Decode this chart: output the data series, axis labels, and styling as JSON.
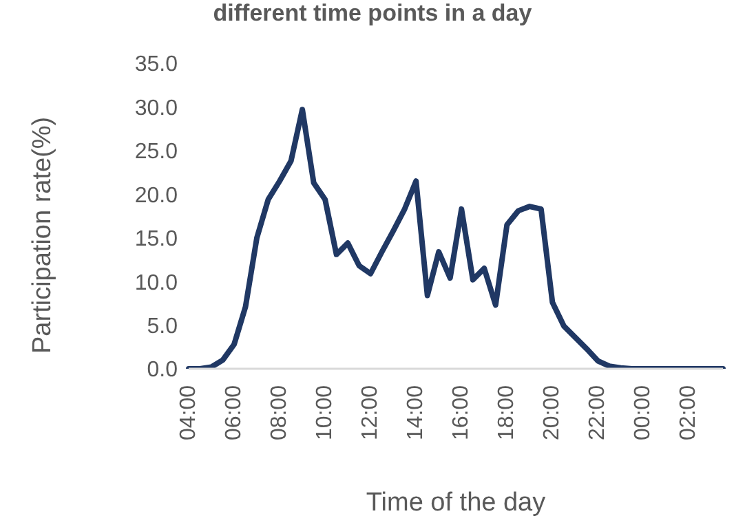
{
  "chart_data": {
    "type": "line",
    "title": "different time points in a day",
    "xlabel": "Time of the day",
    "ylabel": "Participation rate(%)",
    "categories": [
      "04:00",
      null,
      null,
      null,
      "06:00",
      null,
      null,
      null,
      "08:00",
      null,
      null,
      null,
      "10:00",
      null,
      null,
      null,
      "12:00",
      null,
      null,
      null,
      "14:00",
      null,
      null,
      null,
      "16:00",
      null,
      null,
      null,
      "18:00",
      null,
      null,
      null,
      "20:00",
      null,
      null,
      null,
      "22:00",
      null,
      null,
      null,
      "00:00",
      null,
      null,
      null,
      "02:00",
      null,
      null,
      null
    ],
    "series": [
      {
        "color": "#203864",
        "values": [
          0,
          0,
          0.2,
          1,
          2.8,
          7.1,
          15,
          19.4,
          21.5,
          23.8,
          29.7,
          21.3,
          19.4,
          13.1,
          14.4,
          11.8,
          10.9,
          13.4,
          15.8,
          18.3,
          21.5,
          8.4,
          13.4,
          10.4,
          18.3,
          10.2,
          11.5,
          7.3,
          16.5,
          18.1,
          18.6,
          18.3,
          7.6,
          4.9,
          3.6,
          2.3,
          0.9,
          0.3,
          0.1,
          0,
          0,
          0,
          0,
          0,
          0,
          0,
          0,
          0
        ]
      }
    ],
    "ylim": [
      0,
      35
    ],
    "yticks": [
      {
        "value": 0,
        "label": "0.0"
      },
      {
        "value": 5,
        "label": "5.0"
      },
      {
        "value": 10,
        "label": "10.0"
      },
      {
        "value": 15,
        "label": "15.0"
      },
      {
        "value": 20,
        "label": "20.0"
      },
      {
        "value": 25,
        "label": "25.0"
      },
      {
        "value": 30,
        "label": "30.0"
      },
      {
        "value": 35,
        "label": "35.0"
      }
    ],
    "grid": false,
    "legend": false,
    "marker": "none",
    "line_style": "solid"
  }
}
